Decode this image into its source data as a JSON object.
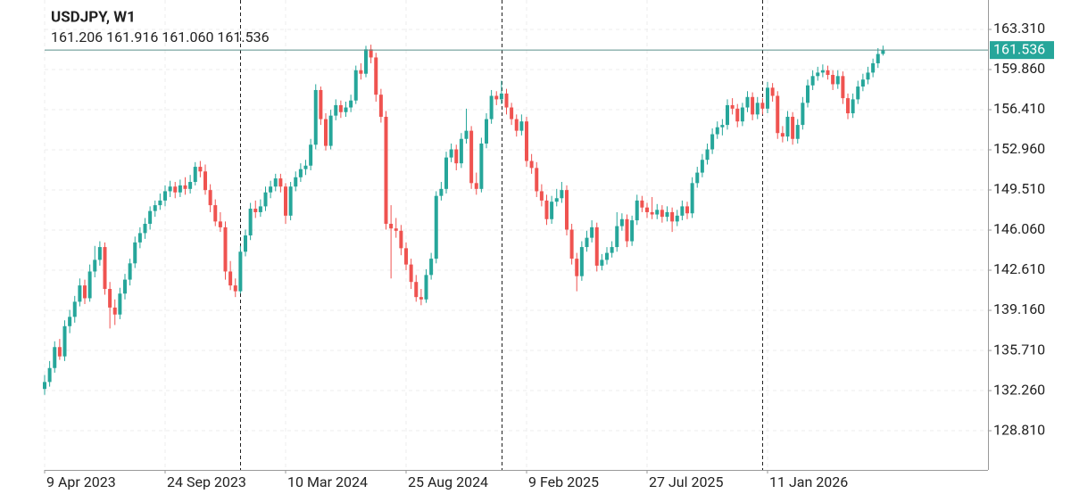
{
  "chart_data": {
    "type": "candlestick",
    "title": "USDJPY, W1",
    "subtitle": "161.206 161.916 161.060 161.536",
    "categories": [
      "9 Apr 2023",
      null,
      null,
      null,
      null,
      null,
      null,
      null,
      null,
      null,
      null,
      null,
      null,
      null,
      null,
      null,
      null,
      null,
      null,
      null,
      null,
      null,
      null,
      null,
      "24 Sep 2023",
      null,
      null,
      null,
      null,
      null,
      null,
      null,
      null,
      null,
      null,
      null,
      null,
      null,
      null,
      null,
      null,
      null,
      null,
      null,
      null,
      null,
      null,
      null,
      "10 Mar 2024",
      null,
      null,
      null,
      null,
      null,
      null,
      null,
      null,
      null,
      null,
      null,
      null,
      null,
      null,
      null,
      null,
      null,
      null,
      null,
      null,
      null,
      null,
      null,
      "25 Aug 2024",
      null,
      null,
      null,
      null,
      null,
      null,
      null,
      null,
      null,
      null,
      null,
      null,
      null,
      null,
      null,
      null,
      null,
      null,
      null,
      null,
      null,
      null,
      null,
      "9 Feb 2025",
      null,
      null,
      null,
      null,
      null,
      null,
      null,
      null,
      null,
      null,
      null,
      null,
      null,
      null,
      null,
      null,
      null,
      null,
      null,
      null,
      null,
      null,
      null,
      "27 Jul 2025",
      null,
      null,
      null,
      null,
      null,
      null,
      null,
      null,
      null,
      null,
      null,
      null,
      null,
      null,
      null,
      null,
      null,
      null,
      null,
      null,
      null,
      null,
      null,
      "11 Jan 2026",
      null,
      null,
      null,
      null,
      null,
      null,
      null,
      null,
      null,
      null,
      null,
      null,
      null,
      null,
      null,
      null,
      null,
      null,
      null,
      null,
      null,
      null,
      null
    ],
    "candles": [
      [
        132.4,
        133.6,
        131.9,
        133.0
      ],
      [
        133.0,
        134.8,
        132.6,
        134.2
      ],
      [
        134.2,
        136.5,
        133.8,
        136.0
      ],
      [
        136.0,
        136.7,
        134.9,
        135.2
      ],
      [
        135.2,
        138.3,
        134.8,
        137.8
      ],
      [
        137.8,
        139.2,
        137.2,
        138.6
      ],
      [
        138.6,
        140.4,
        138.1,
        139.9
      ],
      [
        139.9,
        141.9,
        139.5,
        141.3
      ],
      [
        141.3,
        141.8,
        139.7,
        140.2
      ],
      [
        140.2,
        143.1,
        139.9,
        142.5
      ],
      [
        142.5,
        144.7,
        142.0,
        143.5
      ],
      [
        143.5,
        145.1,
        143.0,
        144.6
      ],
      [
        144.6,
        145.0,
        140.5,
        141.0
      ],
      [
        141.0,
        141.6,
        137.6,
        139.4
      ],
      [
        139.4,
        140.1,
        137.9,
        138.8
      ],
      [
        138.8,
        141.1,
        138.4,
        140.6
      ],
      [
        140.6,
        142.3,
        140.1,
        141.8
      ],
      [
        141.8,
        143.6,
        141.3,
        143.2
      ],
      [
        143.2,
        145.5,
        142.8,
        145.0
      ],
      [
        145.0,
        146.3,
        144.5,
        145.8
      ],
      [
        145.8,
        147.1,
        145.3,
        146.6
      ],
      [
        146.6,
        148.1,
        146.1,
        147.7
      ],
      [
        147.7,
        148.6,
        147.2,
        148.2
      ],
      [
        148.2,
        149.2,
        147.8,
        148.6
      ],
      [
        148.6,
        149.9,
        148.1,
        149.4
      ],
      [
        149.4,
        150.3,
        148.9,
        149.8
      ],
      [
        149.8,
        150.2,
        148.8,
        149.3
      ],
      [
        149.3,
        150.4,
        148.9,
        149.9
      ],
      [
        149.9,
        150.6,
        149.1,
        149.6
      ],
      [
        149.6,
        150.8,
        149.2,
        150.2
      ],
      [
        150.2,
        151.9,
        149.9,
        151.5
      ],
      [
        151.5,
        152.0,
        150.6,
        151.1
      ],
      [
        151.1,
        151.7,
        149.1,
        149.5
      ],
      [
        149.5,
        150.0,
        147.6,
        148.2
      ],
      [
        148.2,
        148.7,
        146.4,
        146.8
      ],
      [
        146.8,
        147.6,
        145.9,
        146.3
      ],
      [
        146.3,
        146.8,
        141.8,
        142.5
      ],
      [
        142.5,
        143.4,
        140.9,
        141.3
      ],
      [
        141.3,
        141.9,
        140.3,
        140.8
      ],
      [
        140.8,
        144.7,
        140.6,
        144.2
      ],
      [
        144.2,
        146.1,
        143.8,
        145.6
      ],
      [
        145.6,
        148.4,
        145.2,
        147.9
      ],
      [
        147.9,
        148.6,
        147.1,
        147.6
      ],
      [
        147.6,
        148.7,
        147.2,
        148.1
      ],
      [
        148.1,
        149.8,
        147.7,
        149.3
      ],
      [
        149.3,
        150.3,
        148.8,
        149.8
      ],
      [
        149.8,
        150.9,
        149.4,
        150.5
      ],
      [
        150.5,
        150.9,
        149.3,
        149.8
      ],
      [
        149.8,
        150.1,
        146.6,
        147.3
      ],
      [
        147.3,
        150.2,
        146.9,
        149.8
      ],
      [
        149.8,
        151.1,
        149.4,
        150.6
      ],
      [
        150.6,
        151.8,
        150.2,
        151.3
      ],
      [
        151.3,
        152.1,
        150.8,
        151.6
      ],
      [
        151.6,
        153.9,
        151.2,
        153.4
      ],
      [
        153.4,
        158.6,
        153.0,
        158.1
      ],
      [
        158.1,
        158.4,
        155.1,
        155.6
      ],
      [
        155.6,
        156.1,
        152.9,
        153.3
      ],
      [
        153.3,
        156.4,
        153.0,
        155.9
      ],
      [
        155.9,
        157.3,
        155.5,
        156.8
      ],
      [
        156.8,
        157.2,
        155.7,
        156.2
      ],
      [
        156.2,
        157.1,
        155.8,
        156.6
      ],
      [
        156.6,
        157.7,
        156.2,
        157.2
      ],
      [
        157.2,
        160.2,
        156.9,
        159.8
      ],
      [
        159.8,
        160.4,
        159.0,
        159.5
      ],
      [
        159.5,
        161.9,
        159.2,
        161.6
      ],
      [
        161.6,
        162.0,
        160.4,
        160.9
      ],
      [
        160.9,
        161.3,
        157.1,
        157.7
      ],
      [
        157.7,
        158.2,
        155.3,
        155.8
      ],
      [
        155.8,
        156.3,
        146.1,
        146.6
      ],
      [
        146.6,
        148.2,
        141.9,
        146.2
      ],
      [
        146.2,
        147.1,
        145.4,
        146.0
      ],
      [
        146.0,
        146.5,
        143.9,
        144.5
      ],
      [
        144.5,
        145.0,
        142.6,
        143.1
      ],
      [
        143.1,
        143.6,
        141.0,
        141.6
      ],
      [
        141.6,
        142.2,
        139.9,
        140.3
      ],
      [
        140.3,
        141.0,
        139.6,
        140.1
      ],
      [
        140.1,
        142.7,
        139.8,
        142.2
      ],
      [
        142.2,
        144.1,
        141.8,
        143.6
      ],
      [
        143.6,
        149.4,
        143.2,
        149.0
      ],
      [
        149.0,
        150.2,
        148.6,
        149.6
      ],
      [
        149.6,
        152.8,
        149.2,
        152.3
      ],
      [
        152.3,
        153.5,
        151.9,
        153.0
      ],
      [
        153.0,
        153.4,
        151.2,
        151.8
      ],
      [
        151.8,
        154.4,
        151.4,
        153.9
      ],
      [
        153.9,
        156.5,
        153.5,
        154.6
      ],
      [
        154.6,
        155.0,
        149.6,
        150.1
      ],
      [
        150.1,
        151.0,
        149.1,
        149.6
      ],
      [
        149.6,
        154.0,
        149.3,
        153.5
      ],
      [
        153.5,
        156.1,
        153.1,
        155.6
      ],
      [
        155.6,
        158.1,
        155.2,
        157.6
      ],
      [
        157.6,
        158.0,
        156.8,
        157.3
      ],
      [
        157.3,
        158.9,
        156.9,
        157.8
      ],
      [
        157.8,
        158.2,
        156.0,
        156.6
      ],
      [
        156.6,
        157.0,
        155.1,
        155.6
      ],
      [
        155.6,
        156.0,
        154.1,
        154.6
      ],
      [
        154.6,
        156.0,
        154.2,
        155.4
      ],
      [
        155.4,
        155.8,
        151.5,
        152.0
      ],
      [
        152.0,
        152.6,
        150.9,
        151.4
      ],
      [
        151.4,
        151.9,
        148.9,
        149.4
      ],
      [
        149.4,
        150.0,
        148.1,
        148.6
      ],
      [
        148.6,
        149.1,
        146.5,
        147.0
      ],
      [
        147.0,
        149.0,
        146.6,
        148.5
      ],
      [
        148.5,
        149.6,
        148.1,
        148.8
      ],
      [
        148.8,
        150.2,
        148.4,
        149.5
      ],
      [
        149.5,
        149.9,
        145.6,
        146.1
      ],
      [
        146.1,
        146.6,
        143.1,
        143.6
      ],
      [
        143.6,
        144.1,
        140.8,
        142.1
      ],
      [
        142.1,
        145.1,
        141.7,
        144.6
      ],
      [
        144.6,
        146.0,
        144.2,
        145.4
      ],
      [
        145.4,
        146.9,
        145.0,
        146.3
      ],
      [
        146.3,
        146.7,
        142.5,
        143.0
      ],
      [
        143.0,
        144.0,
        142.6,
        143.5
      ],
      [
        143.5,
        144.6,
        143.1,
        144.1
      ],
      [
        144.1,
        145.1,
        143.7,
        144.6
      ],
      [
        144.6,
        147.6,
        144.2,
        146.4
      ],
      [
        146.4,
        147.5,
        146.0,
        147.0
      ],
      [
        147.0,
        147.4,
        144.6,
        145.1
      ],
      [
        145.1,
        147.3,
        144.7,
        146.9
      ],
      [
        146.9,
        149.1,
        146.5,
        148.6
      ],
      [
        148.6,
        149.0,
        147.6,
        148.0
      ],
      [
        148.0,
        148.4,
        147.1,
        147.6
      ],
      [
        147.6,
        148.9,
        147.0,
        147.4
      ],
      [
        147.4,
        148.3,
        147.0,
        147.8
      ],
      [
        147.8,
        148.2,
        146.7,
        147.2
      ],
      [
        147.2,
        148.1,
        146.8,
        147.6
      ],
      [
        147.6,
        148.0,
        145.9,
        146.8
      ],
      [
        146.8,
        147.8,
        146.4,
        147.3
      ],
      [
        147.3,
        148.6,
        146.9,
        148.1
      ],
      [
        148.1,
        148.5,
        147.0,
        147.5
      ],
      [
        147.5,
        150.6,
        147.1,
        150.1
      ],
      [
        150.1,
        151.5,
        149.7,
        151.0
      ],
      [
        151.0,
        152.6,
        150.6,
        152.1
      ],
      [
        152.1,
        153.5,
        151.7,
        153.0
      ],
      [
        153.0,
        154.8,
        152.6,
        154.3
      ],
      [
        154.3,
        155.4,
        153.9,
        154.9
      ],
      [
        154.9,
        155.6,
        154.2,
        155.1
      ],
      [
        155.1,
        157.3,
        154.7,
        156.8
      ],
      [
        156.8,
        157.4,
        156.0,
        156.5
      ],
      [
        156.5,
        156.9,
        154.9,
        155.4
      ],
      [
        155.4,
        157.0,
        155.0,
        156.6
      ],
      [
        156.6,
        158.0,
        156.2,
        157.5
      ],
      [
        157.5,
        157.9,
        155.5,
        156.0
      ],
      [
        156.0,
        157.5,
        155.6,
        157.0
      ],
      [
        157.0,
        157.4,
        156.0,
        156.5
      ],
      [
        156.5,
        158.8,
        156.1,
        158.3
      ],
      [
        158.3,
        158.7,
        157.1,
        157.6
      ],
      [
        157.6,
        158.0,
        153.9,
        154.4
      ],
      [
        154.4,
        155.0,
        153.6,
        154.1
      ],
      [
        154.1,
        156.3,
        153.7,
        155.8
      ],
      [
        155.8,
        156.2,
        153.4,
        153.9
      ],
      [
        153.9,
        155.6,
        153.5,
        155.1
      ],
      [
        155.1,
        157.5,
        154.7,
        157.0
      ],
      [
        157.0,
        159.0,
        156.6,
        158.5
      ],
      [
        158.5,
        159.8,
        158.1,
        159.3
      ],
      [
        159.3,
        160.1,
        158.9,
        159.6
      ],
      [
        159.6,
        160.3,
        159.2,
        159.8
      ],
      [
        159.8,
        160.2,
        159.0,
        159.4
      ],
      [
        159.4,
        159.8,
        158.1,
        158.6
      ],
      [
        158.6,
        159.8,
        158.2,
        159.3
      ],
      [
        159.3,
        159.7,
        156.9,
        157.4
      ],
      [
        157.4,
        157.8,
        155.6,
        156.1
      ],
      [
        156.1,
        157.8,
        155.7,
        157.3
      ],
      [
        157.3,
        158.9,
        156.9,
        158.4
      ],
      [
        158.4,
        159.5,
        158.0,
        159.0
      ],
      [
        159.0,
        160.1,
        158.6,
        159.6
      ],
      [
        159.6,
        160.8,
        159.2,
        160.4
      ],
      [
        160.4,
        161.7,
        160.0,
        161.2
      ],
      [
        161.206,
        161.916,
        161.06,
        161.536
      ]
    ],
    "up_color": "#26a69a",
    "down_color": "#ef5350",
    "last_price": {
      "value": 161.536,
      "label": "161.536"
    },
    "last_price_color": "#26a69a",
    "period_separators": [
      39,
      91,
      143
    ],
    "ylim": [
      125.44,
      165.84
    ],
    "yticks": [
      {
        "value": 128.81,
        "label": "128.810"
      },
      {
        "value": 132.26,
        "label": "132.260"
      },
      {
        "value": 135.71,
        "label": "135.710"
      },
      {
        "value": 139.16,
        "label": "139.160"
      },
      {
        "value": 142.61,
        "label": "142.610"
      },
      {
        "value": 146.06,
        "label": "146.060"
      },
      {
        "value": 149.51,
        "label": "149.510"
      },
      {
        "value": 152.96,
        "label": "152.960"
      },
      {
        "value": 156.41,
        "label": "156.410"
      },
      {
        "value": 159.86,
        "label": "159.860"
      },
      {
        "value": 163.31,
        "label": "163.310"
      }
    ],
    "grid": true
  }
}
